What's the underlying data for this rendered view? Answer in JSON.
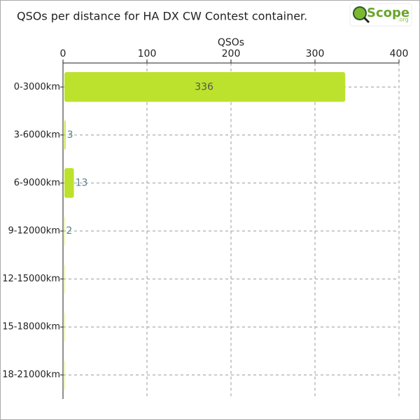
{
  "logo": {
    "name": "Scope",
    "suffix": ".org"
  },
  "chart_data": {
    "type": "bar",
    "orientation": "horizontal",
    "title": "QSOs per distance for HA DX CW Contest container.",
    "x_label": "QSOs",
    "categories": [
      "0-3000km",
      "3-6000km",
      "6-9000km",
      "9-12000km",
      "12-15000km",
      "15-18000km",
      "18-21000km"
    ],
    "values": [
      336,
      3,
      13,
      2,
      0,
      0,
      0
    ],
    "color": "#bde22e",
    "xlim": [
      0,
      400
    ],
    "xticks": [
      0,
      100,
      200,
      300,
      400
    ],
    "grid": true
  }
}
